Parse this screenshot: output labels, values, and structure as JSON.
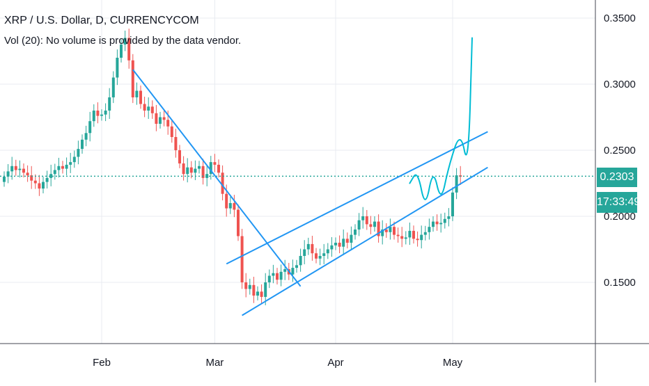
{
  "header": {
    "title": "XRP / U.S. Dollar, D, CURRENCYCOM",
    "volume_note": "Vol (20): No volume is provided by the data vendor."
  },
  "price_axis": {
    "labels": [
      "0.3500",
      "0.3000",
      "0.2500",
      "0.2000",
      "0.1500"
    ],
    "last_price": "0.2303",
    "countdown": "17:33:49"
  },
  "time_axis": {
    "labels": [
      "Feb",
      "Mar",
      "Apr",
      "May"
    ]
  },
  "colors": {
    "up": "#26a69a",
    "down": "#ef5350",
    "drawing": "#2196f3",
    "forecast": "#00bcd4",
    "grid": "#e8ebf0",
    "axis": "#434651"
  },
  "chart_data": {
    "type": "candlestick",
    "symbol": "XRP / U.S. Dollar",
    "interval": "D",
    "exchange": "CURRENCYCOM",
    "y_range": [
      0.1,
      0.36
    ],
    "y_ticks": [
      0.35,
      0.3,
      0.25,
      0.2,
      0.15
    ],
    "x_ticks": [
      {
        "label": "Feb",
        "index": 25
      },
      {
        "label": "Mar",
        "index": 54
      },
      {
        "label": "Apr",
        "index": 85
      },
      {
        "label": "May",
        "index": 115
      }
    ],
    "last_price": 0.2303,
    "close": [
      0.23,
      0.234,
      0.238,
      0.235,
      0.236,
      0.233,
      0.231,
      0.227,
      0.225,
      0.221,
      0.226,
      0.229,
      0.232,
      0.235,
      0.238,
      0.236,
      0.239,
      0.241,
      0.245,
      0.251,
      0.258,
      0.263,
      0.272,
      0.28,
      0.276,
      0.277,
      0.28,
      0.29,
      0.305,
      0.32,
      0.33,
      0.335,
      0.318,
      0.29,
      0.295,
      0.285,
      0.28,
      0.283,
      0.278,
      0.27,
      0.275,
      0.273,
      0.268,
      0.26,
      0.25,
      0.24,
      0.232,
      0.237,
      0.233,
      0.236,
      0.238,
      0.229,
      0.232,
      0.241,
      0.239,
      0.233,
      0.217,
      0.206,
      0.21,
      0.205,
      0.185,
      0.15,
      0.145,
      0.148,
      0.14,
      0.143,
      0.139,
      0.15,
      0.155,
      0.157,
      0.152,
      0.158,
      0.16,
      0.156,
      0.161,
      0.163,
      0.17,
      0.175,
      0.179,
      0.172,
      0.168,
      0.17,
      0.172,
      0.175,
      0.178,
      0.18,
      0.177,
      0.183,
      0.18,
      0.186,
      0.19,
      0.197,
      0.2,
      0.194,
      0.192,
      0.196,
      0.185,
      0.19,
      0.188,
      0.192,
      0.186,
      0.185,
      0.183,
      0.184,
      0.189,
      0.183,
      0.182,
      0.186,
      0.188,
      0.192,
      0.196,
      0.194,
      0.195,
      0.198,
      0.2,
      0.218,
      0.231,
      0.23
    ]
  },
  "drawings": {
    "trendline": [
      [
        33,
        0.311
      ],
      [
        76,
        0.147
      ]
    ],
    "channel_upper": [
      [
        57,
        0.164
      ],
      [
        124,
        0.264
      ]
    ],
    "channel_lower": [
      [
        61,
        0.125
      ],
      [
        124,
        0.237
      ]
    ],
    "forecast_curve": [
      [
        104,
        0.225
      ],
      [
        106,
        0.235
      ],
      [
        108,
        0.205
      ],
      [
        110,
        0.237
      ],
      [
        112,
        0.21
      ],
      [
        114,
        0.238
      ],
      [
        117,
        0.265
      ],
      [
        119,
        0.235
      ],
      [
        120,
        0.335
      ]
    ]
  }
}
